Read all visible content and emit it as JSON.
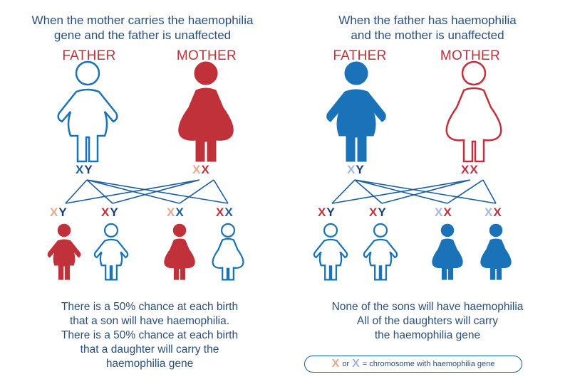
{
  "left": {
    "heading_line1": "When the mother carries the haemophilia",
    "heading_line2": "gene and the father is unaffected",
    "father_label": "FATHER",
    "mother_label": "MOTHER",
    "father_chromosomes": [
      "X",
      "Y"
    ],
    "mother_chromosomes": [
      "X",
      "X"
    ],
    "children_chromosomes": [
      [
        "X",
        "Y"
      ],
      [
        "X",
        "Y"
      ],
      [
        "X",
        "X"
      ],
      [
        "X",
        "X"
      ]
    ],
    "text_lines": [
      "There is a 50% chance at each birth",
      "that a son will have haemophilia.",
      "There is a 50% chance at each birth",
      "that a daughter will carry the",
      "haemophilia gene"
    ]
  },
  "right": {
    "heading_line1": "When the father has haemophilia",
    "heading_line2": "and the mother is unaffected",
    "father_label": "FATHER",
    "mother_label": "MOTHER",
    "father_chromosomes": [
      "X",
      "Y"
    ],
    "mother_chromosomes": [
      "X",
      "X"
    ],
    "children_chromosomes": [
      [
        "X",
        "Y"
      ],
      [
        "X",
        "Y"
      ],
      [
        "X",
        "X"
      ],
      [
        "X",
        "X"
      ]
    ],
    "text_lines": [
      "None of the sons will have haemophilia",
      "All of the daughters will carry",
      "the haemophilia gene"
    ]
  },
  "legend": {
    "x1": "X",
    "or": "or",
    "x2": "X",
    "text": "= chromosome with haemophilia gene"
  },
  "colors": {
    "red": "#c0313a",
    "blue": "#1a72b8",
    "navy": "#1b3f72",
    "salmon": "#e9a88c",
    "light_blue": "#a6b6dc"
  }
}
